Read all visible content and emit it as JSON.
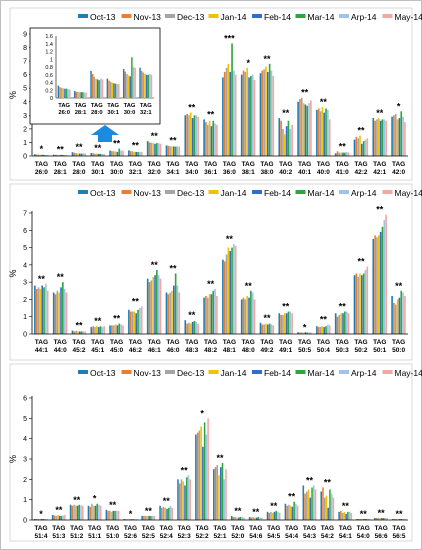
{
  "colors": [
    "#1f7fb4",
    "#ed7d31",
    "#a5a5a5",
    "#f2c200",
    "#2f6fc9",
    "#2ea63f",
    "#9fc3ea",
    "#f2a7a0"
  ],
  "chart_data": [
    {
      "type": "bar",
      "title": "",
      "ylabel": "%",
      "ylim": [
        0,
        9
      ],
      "yticks": [
        0,
        1,
        2,
        3,
        4,
        5,
        6,
        7,
        8,
        9
      ],
      "legend": [
        "Oct-13",
        "Nov-13",
        "Dec-13",
        "Jan-14",
        "Feb-14",
        "Mar-14",
        "Arp-14",
        "May-14"
      ],
      "legend_position": "top",
      "categories": [
        "TAG 26:0",
        "TAG 28:1",
        "TAG 28:0",
        "TAG 30:1",
        "TAG 30:0",
        "TAG 32:1",
        "TAG 32:0",
        "TAG 34:1",
        "TAG 34:0",
        "TAG 36:1",
        "TAG 36:0",
        "TAG 38:1",
        "TAG 38:0",
        "TAG 40:2",
        "TAG 40:1",
        "TAG 40:0",
        "TAG 41:0",
        "TAG 42:2",
        "TAG 42:1",
        "TAG 42:0"
      ],
      "values": [
        [
          0.13,
          0.1,
          0.1,
          0.09,
          0.09,
          0.08,
          0.08,
          0.08
        ],
        [
          0.1,
          0.09,
          0.09,
          0.08,
          0.08,
          0.08,
          0.08,
          0.07
        ],
        [
          0.28,
          0.24,
          0.22,
          0.2,
          0.18,
          0.18,
          0.2,
          0.19
        ],
        [
          0.22,
          0.2,
          0.18,
          0.18,
          0.16,
          0.16,
          0.15,
          0.15
        ],
        [
          0.4,
          0.36,
          0.35,
          0.33,
          0.3,
          0.55,
          0.4,
          0.4
        ],
        [
          0.42,
          0.36,
          0.34,
          0.32,
          0.3,
          0.3,
          0.3,
          0.3
        ],
        [
          1.1,
          1.0,
          0.98,
          0.95,
          0.9,
          0.95,
          0.95,
          0.9
        ],
        [
          0.78,
          0.75,
          0.72,
          0.72,
          0.7,
          0.7,
          0.72,
          0.7
        ],
        [
          3.0,
          3.1,
          3.0,
          3.2,
          2.8,
          3.0,
          3.0,
          2.9
        ],
        [
          2.7,
          2.5,
          2.3,
          2.6,
          2.2,
          2.6,
          2.4,
          2.3
        ],
        [
          5.8,
          6.2,
          6.5,
          6.8,
          6.2,
          8.3,
          6.3,
          6.0
        ],
        [
          6.0,
          6.3,
          6.2,
          6.5,
          5.8,
          5.9,
          6.0,
          5.6
        ],
        [
          6.1,
          6.3,
          6.4,
          6.6,
          6.2,
          6.8,
          6.3,
          5.9
        ],
        [
          2.8,
          2.6,
          2.0,
          1.6,
          2.2,
          2.6,
          2.0,
          2.3
        ],
        [
          4.0,
          4.2,
          4.3,
          3.9,
          3.8,
          3.7,
          3.9,
          4.1
        ],
        [
          3.4,
          3.5,
          3.3,
          3.6,
          3.2,
          3.5,
          3.4,
          2.7
        ],
        [
          0.2,
          0.35,
          0.25,
          0.25,
          0.25,
          0.25,
          0.3,
          0.25
        ],
        [
          1.2,
          1.4,
          1.3,
          1.5,
          0.9,
          1.1,
          1.2,
          1.3
        ],
        [
          2.8,
          2.6,
          2.7,
          2.8,
          2.6,
          2.7,
          2.7,
          2.6
        ],
        [
          2.9,
          3.0,
          3.1,
          2.7,
          2.8,
          3.3,
          2.9,
          2.5
        ]
      ],
      "annotations": [
        "*",
        "**",
        "**",
        "**",
        "**",
        "**",
        "**",
        "**",
        "**",
        "**",
        "***",
        "*",
        "**",
        "**",
        "**",
        "**",
        "**",
        "**",
        "**",
        "*"
      ],
      "inset": {
        "ylim": [
          0,
          1.6
        ],
        "yticks": [
          0,
          0.2,
          0.4,
          0.6,
          0.8,
          1.0,
          1.2,
          1.4,
          1.6
        ],
        "ytick_labels": [
          "0",
          "0.2",
          "0.4",
          "0.6",
          "0.8",
          "1",
          "1.2",
          "1.4",
          "1.6"
        ],
        "categories": [
          "TAG 26:0",
          "TAG 28:1",
          "TAG 28:0",
          "TAG 30:1",
          "TAG 30:0",
          "TAG 32:1"
        ],
        "values": [
          [
            0.32,
            0.28,
            0.26,
            0.25,
            0.24,
            0.24,
            0.23,
            0.22
          ],
          [
            0.18,
            0.16,
            0.16,
            0.15,
            0.15,
            0.15,
            0.14,
            0.14
          ],
          [
            0.7,
            0.62,
            0.55,
            0.5,
            0.48,
            0.46,
            0.5,
            0.48
          ],
          [
            0.5,
            0.45,
            0.42,
            0.4,
            0.38,
            0.37,
            0.36,
            0.36
          ],
          [
            0.75,
            0.68,
            0.62,
            0.58,
            0.56,
            1.05,
            0.8,
            0.78
          ],
          [
            0.78,
            0.7,
            0.66,
            0.62,
            0.6,
            0.6,
            0.62,
            0.6
          ]
        ]
      }
    },
    {
      "type": "bar",
      "title": "",
      "ylabel": "%",
      "ylim": [
        0,
        7
      ],
      "yticks": [
        0,
        1,
        2,
        3,
        4,
        5,
        6,
        7
      ],
      "legend": [
        "Oct-13",
        "Nov-13",
        "Dec-13",
        "Jan-14",
        "Feb-14",
        "Mar-14",
        "Arp-14",
        "May-14"
      ],
      "legend_position": "top",
      "categories": [
        "TAG 44:1",
        "TAG 44:0",
        "TAG 45:2",
        "TAG 45:1",
        "TAG 45:0",
        "TAG 46:2",
        "TAG 46:1",
        "TAG 46:0",
        "TAG 48:3",
        "TAG 48:2",
        "TAG 48:1",
        "TAG 48:0",
        "TAG 49:2",
        "TAG 49:1",
        "TAG 50:5",
        "TAG 50:4",
        "TAG 50:3",
        "TAG 50:2",
        "TAG 50:1",
        "TAG 50:0"
      ],
      "values": [
        [
          2.8,
          2.6,
          2.7,
          2.6,
          2.8,
          2.7,
          2.9,
          2.5
        ],
        [
          2.4,
          2.3,
          2.5,
          2.4,
          2.7,
          3.0,
          2.6,
          2.4
        ],
        [
          0.2,
          0.15,
          0.18,
          0.15,
          0.15,
          0.15,
          0.15,
          0.15
        ],
        [
          0.4,
          0.45,
          0.4,
          0.45,
          0.4,
          0.45,
          0.4,
          0.45
        ],
        [
          0.5,
          0.5,
          0.5,
          0.55,
          0.5,
          0.6,
          0.55,
          0.5
        ],
        [
          1.4,
          1.3,
          1.3,
          1.3,
          1.2,
          1.4,
          1.5,
          1.6
        ],
        [
          3.2,
          3.0,
          3.1,
          3.3,
          3.4,
          3.7,
          3.4,
          3.2
        ],
        [
          2.4,
          2.3,
          2.4,
          2.5,
          2.8,
          3.5,
          2.8,
          2.4
        ],
        [
          0.8,
          0.6,
          0.65,
          0.6,
          0.7,
          0.75,
          0.7,
          0.6
        ],
        [
          2.1,
          2.2,
          2.1,
          2.3,
          2.3,
          2.5,
          2.6,
          2.2
        ],
        [
          4.3,
          4.2,
          4.6,
          5.0,
          4.8,
          5.0,
          5.2,
          5.1
        ],
        [
          2.0,
          2.1,
          2.0,
          2.2,
          2.1,
          2.5,
          2.4,
          2.0
        ],
        [
          0.65,
          0.55,
          0.55,
          0.6,
          0.55,
          0.6,
          0.55,
          0.5
        ],
        [
          1.2,
          1.1,
          1.1,
          1.2,
          1.2,
          1.3,
          1.3,
          1.2
        ],
        [
          0.1,
          0.08,
          0.1,
          0.08,
          0.1,
          0.08,
          0.1,
          0.08
        ],
        [
          0.45,
          0.4,
          0.42,
          0.45,
          0.4,
          0.45,
          0.55,
          0.5
        ],
        [
          1.2,
          1.0,
          1.1,
          1.2,
          1.2,
          1.3,
          1.3,
          1.2
        ],
        [
          3.4,
          3.5,
          3.3,
          3.5,
          3.4,
          3.5,
          3.7,
          3.9
        ],
        [
          5.5,
          5.7,
          5.6,
          5.7,
          5.9,
          6.2,
          6.6,
          6.9
        ],
        [
          2.2,
          1.8,
          1.7,
          2.0,
          2.1,
          2.5,
          2.4,
          2.2
        ]
      ],
      "annotations": [
        "**",
        "**",
        "**",
        "**",
        "**",
        "**",
        "**",
        "**",
        "**",
        "**",
        "**",
        "**",
        "**",
        "**",
        "*",
        "**",
        "**",
        "**",
        "**",
        "**"
      ]
    },
    {
      "type": "bar",
      "title": "",
      "ylabel": "%",
      "ylim": [
        0,
        6
      ],
      "yticks": [
        0,
        1,
        2,
        3,
        4,
        5,
        6
      ],
      "legend": [
        "Oct-13",
        "Nov-13",
        "Dec-13",
        "Jan-14",
        "Feb-14",
        "Mar-14",
        "Arp-14",
        "May-14"
      ],
      "legend_position": "top",
      "categories": [
        "TAG 51:4",
        "TAG 51:3",
        "TAG 51:2",
        "TAG 51:1",
        "TAG 51:0",
        "TAG 52:6",
        "TAG 52:5",
        "TAG 52:4",
        "TAG 52:3",
        "TAG 52:2",
        "TAG 52:1",
        "TAG 52:0",
        "TAG 54:6",
        "TAG 54:5",
        "TAG 54:4",
        "TAG 54:3",
        "TAG 54:2",
        "TAG 54:1",
        "TAG 54:0",
        "TAG 56:6",
        "TAG 56:5"
      ],
      "values": [
        [
          0.05,
          0.05,
          0.05,
          0.05,
          0.05,
          0.05,
          0.05,
          0.05
        ],
        [
          0.25,
          0.22,
          0.2,
          0.25,
          0.2,
          0.2,
          0.22,
          0.25
        ],
        [
          0.75,
          0.7,
          0.75,
          0.72,
          0.7,
          0.75,
          0.72,
          0.7
        ],
        [
          0.7,
          0.65,
          0.8,
          0.7,
          0.7,
          0.8,
          0.75,
          0.7
        ],
        [
          0.5,
          0.45,
          0.45,
          0.4,
          0.45,
          0.45,
          0.45,
          0.45
        ],
        [
          0.05,
          0.04,
          0.04,
          0.04,
          0.04,
          0.04,
          0.04,
          0.04
        ],
        [
          0.2,
          0.2,
          0.2,
          0.2,
          0.2,
          0.2,
          0.2,
          0.2
        ],
        [
          0.7,
          0.6,
          0.65,
          0.6,
          0.55,
          0.6,
          0.7,
          0.6
        ],
        [
          2.0,
          1.8,
          2.0,
          1.9,
          1.7,
          2.1,
          2.2,
          2.0
        ],
        [
          4.2,
          4.3,
          4.4,
          4.6,
          3.6,
          4.8,
          4.2,
          5.0
        ],
        [
          2.5,
          2.6,
          2.7,
          2.2,
          2.6,
          2.8,
          2.0,
          2.5
        ],
        [
          0.2,
          0.15,
          0.15,
          0.12,
          0.12,
          0.15,
          0.15,
          0.12
        ],
        [
          0.15,
          0.12,
          0.15,
          0.12,
          0.12,
          0.15,
          0.12,
          0.12
        ],
        [
          0.4,
          0.35,
          0.4,
          0.35,
          0.4,
          0.45,
          0.4,
          0.35
        ],
        [
          0.8,
          0.7,
          0.75,
          0.7,
          0.65,
          0.9,
          0.8,
          0.7
        ],
        [
          1.7,
          1.3,
          1.4,
          1.5,
          1.1,
          1.6,
          1.7,
          1.5
        ],
        [
          1.4,
          1.6,
          1.1,
          1.2,
          0.6,
          1.5,
          1.3,
          1.1
        ],
        [
          0.4,
          0.45,
          0.35,
          0.4,
          0.3,
          0.4,
          0.4,
          0.35
        ],
        [
          0.05,
          0.05,
          0.05,
          0.05,
          0.05,
          0.05,
          0.05,
          0.05
        ],
        [
          0.1,
          0.1,
          0.1,
          0.1,
          0.1,
          0.1,
          0.1,
          0.1
        ],
        [
          0.05,
          0.05,
          0.05,
          0.05,
          0.05,
          0.05,
          0.05,
          0.05
        ]
      ],
      "annotations": [
        "*",
        "**",
        "**",
        "*",
        "**",
        "*",
        "**",
        "**",
        "**",
        "*",
        "**",
        "**",
        "**",
        "**",
        "**",
        "**",
        "**",
        "**",
        "**",
        "**",
        "**"
      ]
    }
  ]
}
